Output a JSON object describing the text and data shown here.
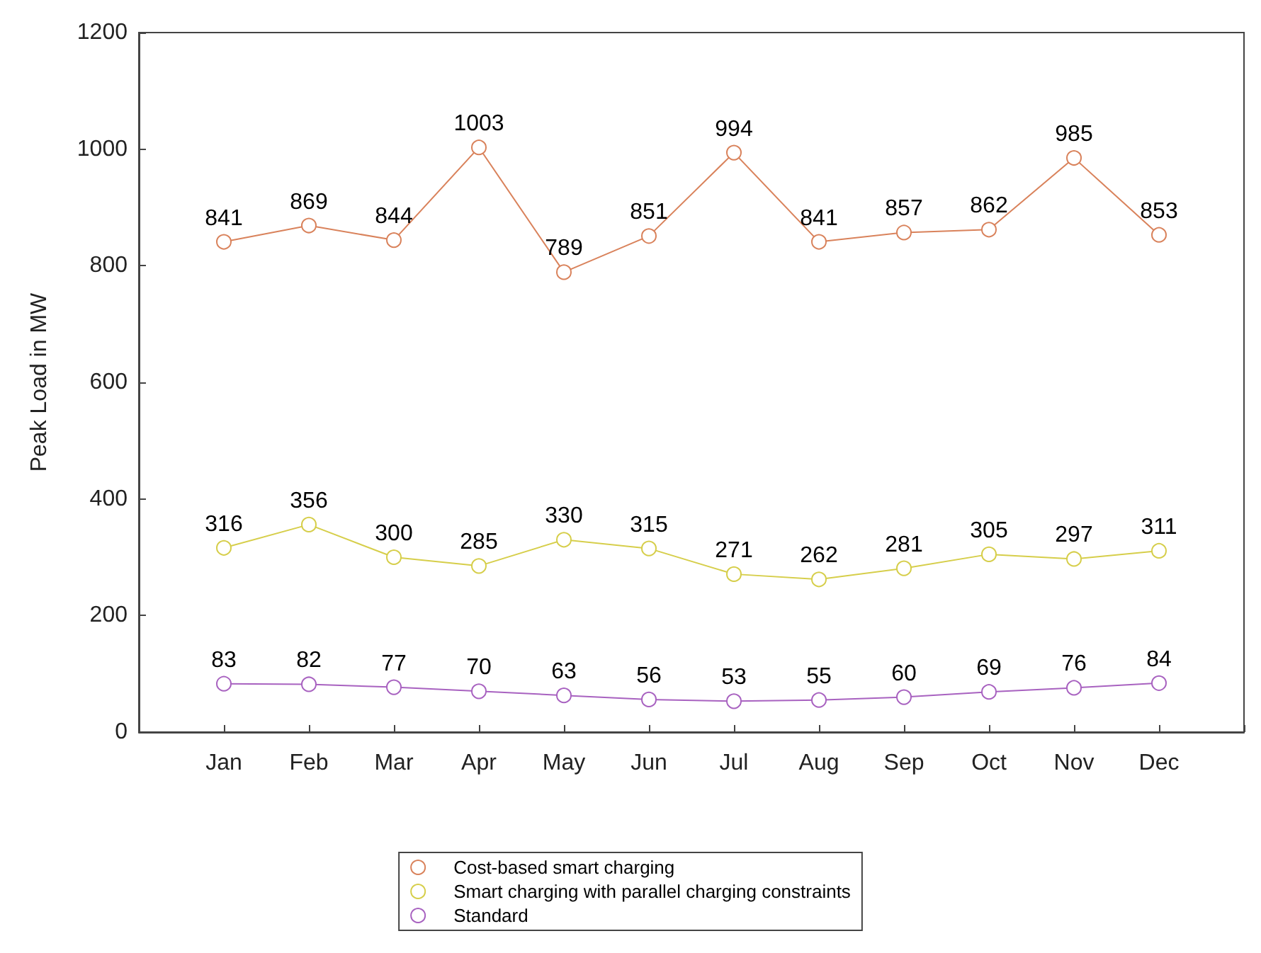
{
  "chart_data": {
    "type": "line",
    "ylabel": "Peak Load in MW",
    "categories": [
      null,
      "Jan",
      "Feb",
      "Mar",
      "Apr",
      "May",
      "Jun",
      "Jul",
      "Aug",
      "Sep",
      "Oct",
      "Nov",
      "Dec",
      null
    ],
    "series": [
      {
        "name": "Cost-based smart charging",
        "color": "#d9825b",
        "values": [
          null,
          841,
          869,
          844,
          1003,
          789,
          851,
          994,
          841,
          857,
          862,
          985,
          853,
          null
        ]
      },
      {
        "name": "Smart charging with parallel charging constraints",
        "color": "#d6ce4a",
        "values": [
          null,
          316,
          356,
          300,
          285,
          330,
          315,
          271,
          262,
          281,
          305,
          297,
          311,
          null
        ]
      },
      {
        "name": "Standard",
        "color": "#a862c0",
        "values": [
          null,
          83,
          82,
          77,
          70,
          63,
          56,
          53,
          55,
          60,
          69,
          76,
          84,
          null
        ]
      }
    ],
    "ylim": [
      0,
      1200
    ],
    "yticks": [
      0,
      200,
      400,
      600,
      800,
      1000,
      1200
    ],
    "grid": false,
    "legend": "bottom",
    "marker": "circle",
    "line_style": "solid",
    "data_labels": true
  }
}
